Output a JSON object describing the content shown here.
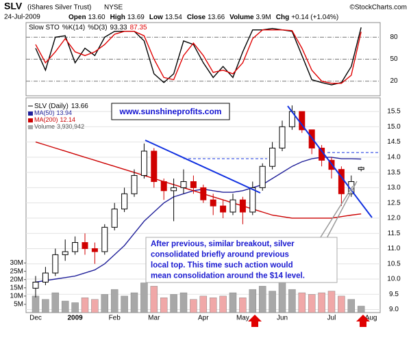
{
  "header": {
    "symbol": "SLV",
    "name": "(iShares Silver Trust)",
    "exchange": "NYSE",
    "date": "24-Jul-2009",
    "copyright": "©StockCharts.com",
    "stats": [
      {
        "label": "Open",
        "value": "13.60"
      },
      {
        "label": "High",
        "value": "13.69"
      },
      {
        "label": "Low",
        "value": "13.54"
      },
      {
        "label": "Close",
        "value": "13.66"
      },
      {
        "label": "Volume",
        "value": "3.9M"
      },
      {
        "label": "Chg",
        "value": "+0.14 (+1.04%)"
      }
    ]
  },
  "annotations": {
    "website": "www.sunshineprofits.com",
    "note": [
      "After previous, similar breakout, silver",
      "consolidated briefly around previous",
      "local top. This time such action would",
      "mean consolidation around the $14 level."
    ]
  },
  "chart_data": [
    {
      "type": "line",
      "title": "Slow STO",
      "ylim": [
        0,
        100
      ],
      "yticks": [
        20,
        50,
        80
      ],
      "series": [
        {
          "name": "%K(14)",
          "color": "#000000",
          "values": [
            65,
            35,
            80,
            82,
            45,
            65,
            55,
            80,
            88,
            88,
            88,
            75,
            30,
            18,
            30,
            75,
            70,
            45,
            25,
            40,
            25,
            60,
            90,
            90,
            92,
            90,
            88,
            55,
            22,
            18,
            15,
            18,
            40,
            93.33,
            null
          ]
        },
        {
          "name": "%D(3)",
          "color": "#e00000",
          "values": [
            70,
            45,
            60,
            78,
            60,
            55,
            60,
            70,
            84,
            88,
            88,
            82,
            50,
            25,
            22,
            55,
            72,
            55,
            32,
            35,
            30,
            45,
            78,
            90,
            90,
            90,
            89,
            65,
            35,
            20,
            17,
            17,
            28,
            87.35,
            null
          ]
        }
      ]
    },
    {
      "type": "candlestick",
      "categories": [
        "Dec",
        null,
        null,
        null,
        "2009",
        null,
        null,
        null,
        "Feb",
        null,
        null,
        null,
        "Mar",
        null,
        null,
        null,
        null,
        "Apr",
        null,
        null,
        null,
        "May",
        null,
        null,
        null,
        "Jun",
        null,
        null,
        null,
        null,
        "Jul",
        null,
        null,
        null,
        "Aug"
      ],
      "ylim": [
        8.9,
        15.95
      ],
      "yticks": [
        {
          "value": 9,
          "label": "9.0"
        },
        9.5,
        {
          "value": 10,
          "label": "10.0"
        },
        10.5,
        {
          "value": 11,
          "label": "11.0"
        },
        11.5,
        {
          "value": 12,
          "label": "12.0"
        },
        12.5,
        {
          "value": 13,
          "label": "13.0"
        },
        13.5,
        {
          "value": 14,
          "label": "14.0"
        },
        14.5,
        {
          "value": 15,
          "label": "15.0"
        },
        15.5
      ],
      "y2lim": [
        0,
        130000000
      ],
      "y2ticks": [
        {
          "value": 5000000,
          "label": "5M"
        },
        {
          "value": 10000000,
          "label": "10M"
        },
        {
          "value": 15000000,
          "label": "15M"
        },
        {
          "value": 20000000,
          "label": "20M"
        },
        {
          "value": 25000000,
          "label": "25M"
        },
        {
          "value": 30000000,
          "label": "30M"
        }
      ],
      "ohlc": {
        "name": "SLV (Daily)",
        "open": [
          9.7,
          9.9,
          10.2,
          10.8,
          10.9,
          11.2,
          11.0,
          10.9,
          11.7,
          12.3,
          12.8,
          13.4,
          14.2,
          13.2,
          12.9,
          13.0,
          13.2,
          13.0,
          12.6,
          12.4,
          12.2,
          12.6,
          12.2,
          13.0,
          13.7,
          14.3,
          15.0,
          15.5,
          14.9,
          14.3,
          13.9,
          13.6,
          12.8,
          13.6,
          null
        ],
        "high": [
          10.1,
          10.4,
          11.0,
          11.3,
          11.4,
          11.5,
          11.2,
          11.8,
          12.5,
          13.0,
          13.6,
          14.45,
          14.3,
          13.3,
          13.3,
          13.6,
          13.4,
          13.1,
          12.8,
          12.6,
          12.8,
          12.7,
          13.2,
          13.8,
          14.5,
          15.2,
          15.7,
          15.5,
          14.9,
          14.4,
          14.0,
          13.7,
          13.4,
          13.69,
          null
        ],
        "low": [
          9.4,
          9.8,
          10.1,
          10.6,
          10.8,
          10.8,
          10.5,
          10.8,
          11.6,
          12.2,
          12.7,
          13.3,
          13.0,
          12.6,
          11.9,
          12.8,
          12.8,
          12.5,
          12.1,
          12.0,
          12.1,
          11.8,
          12.1,
          12.9,
          13.6,
          14.2,
          14.9,
          14.8,
          14.1,
          13.7,
          13.3,
          12.4,
          12.7,
          13.54,
          null
        ],
        "close": [
          9.9,
          10.2,
          10.8,
          10.9,
          11.2,
          11.0,
          10.9,
          11.7,
          12.3,
          12.8,
          13.4,
          14.2,
          13.2,
          12.9,
          13.0,
          13.2,
          13.0,
          12.6,
          12.4,
          12.2,
          12.6,
          12.2,
          13.0,
          13.7,
          14.3,
          15.0,
          15.5,
          14.9,
          14.3,
          13.9,
          13.6,
          12.8,
          13.2,
          13.66,
          null
        ]
      },
      "series": [
        {
          "name": "MA(50)",
          "color": "#1f1f99",
          "values": [
            9.9,
            9.95,
            10.0,
            10.05,
            10.1,
            10.2,
            10.3,
            10.5,
            10.8,
            11.1,
            11.5,
            11.9,
            12.2,
            12.5,
            12.7,
            12.8,
            12.9,
            12.95,
            12.9,
            12.85,
            12.85,
            12.9,
            13.0,
            13.1,
            13.3,
            13.5,
            13.7,
            13.85,
            13.95,
            14.0,
            14.0,
            13.95,
            13.95,
            13.94,
            null
          ]
        },
        {
          "name": "MA(200)",
          "color": "#cc0000",
          "values": [
            14.5,
            14.4,
            14.3,
            14.2,
            14.1,
            14.0,
            13.9,
            13.8,
            13.7,
            13.6,
            13.5,
            13.4,
            13.3,
            13.2,
            13.1,
            13.0,
            12.9,
            12.8,
            12.7,
            12.6,
            12.5,
            12.4,
            12.3,
            12.2,
            12.1,
            12.05,
            12.0,
            12.0,
            12.0,
            12.0,
            12.0,
            12.05,
            12.1,
            12.14,
            null
          ]
        },
        {
          "name": "Volume",
          "color": "#a8a8a8",
          "axis": "y2",
          "legend_value": "3,930,942",
          "values": [
            10000000,
            8000000,
            12000000,
            7000000,
            6000000,
            9000000,
            8000000,
            11000000,
            14000000,
            10000000,
            12000000,
            18000000,
            16000000,
            9000000,
            11000000,
            12000000,
            8000000,
            10000000,
            9000000,
            10000000,
            12000000,
            9000000,
            14000000,
            16000000,
            13000000,
            20000000,
            14000000,
            12000000,
            11000000,
            12000000,
            13000000,
            10000000,
            8000000,
            3930942,
            null
          ]
        }
      ]
    }
  ]
}
